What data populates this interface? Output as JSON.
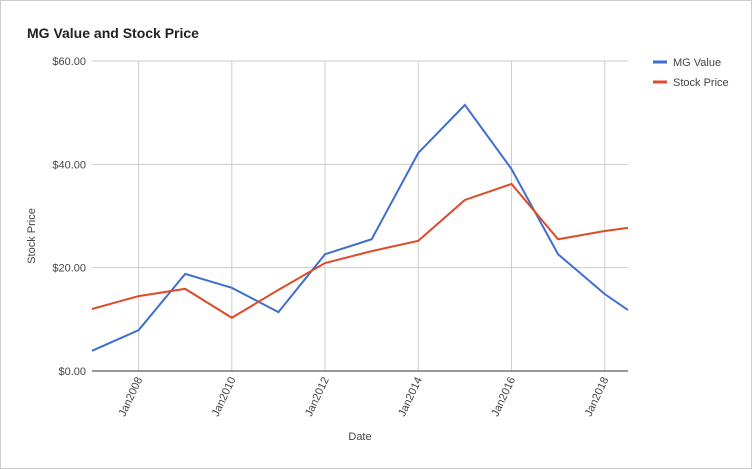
{
  "chart_data": {
    "type": "line",
    "title": "MG Value and Stock Price",
    "x_label": "Date",
    "y_label": "Stock Price",
    "x": [
      "2007-01",
      "2008-01",
      "2009-01",
      "2010-01",
      "2011-01",
      "2012-01",
      "2013-01",
      "2014-01",
      "2015-01",
      "2016-01",
      "2017-01",
      "2018-01",
      "2018-07"
    ],
    "series": [
      {
        "name": "MG Value",
        "color": "#3f6fce",
        "values": [
          3.9,
          7.9,
          18.8,
          16.1,
          11.4,
          22.6,
          25.5,
          42.2,
          51.5,
          39.1,
          22.6,
          14.9,
          11.8
        ]
      },
      {
        "name": "Stock Price",
        "color": "#dc4b2a",
        "values": [
          12.0,
          14.5,
          15.9,
          10.3,
          15.7,
          20.9,
          23.2,
          25.2,
          33.1,
          36.2,
          25.5,
          27.1,
          27.7
        ]
      }
    ],
    "xlim": [
      "2007-01",
      "2018-07"
    ],
    "xticks": [
      {
        "value": "2008-01",
        "label": "Jan2008"
      },
      {
        "value": "2010-01",
        "label": "Jan2010"
      },
      {
        "value": "2012-01",
        "label": "Jan2012"
      },
      {
        "value": "2014-01",
        "label": "Jan2014"
      },
      {
        "value": "2016-01",
        "label": "Jan2016"
      },
      {
        "value": "2018-01",
        "label": "Jan2018"
      }
    ],
    "ylim": [
      0,
      60
    ],
    "yticks": [
      {
        "value": 0,
        "label": "$0.00"
      },
      {
        "value": 20,
        "label": "$20.00"
      },
      {
        "value": 40,
        "label": "$40.00"
      },
      {
        "value": 60,
        "label": "$60.00"
      }
    ],
    "grid": true,
    "legend": "right"
  }
}
